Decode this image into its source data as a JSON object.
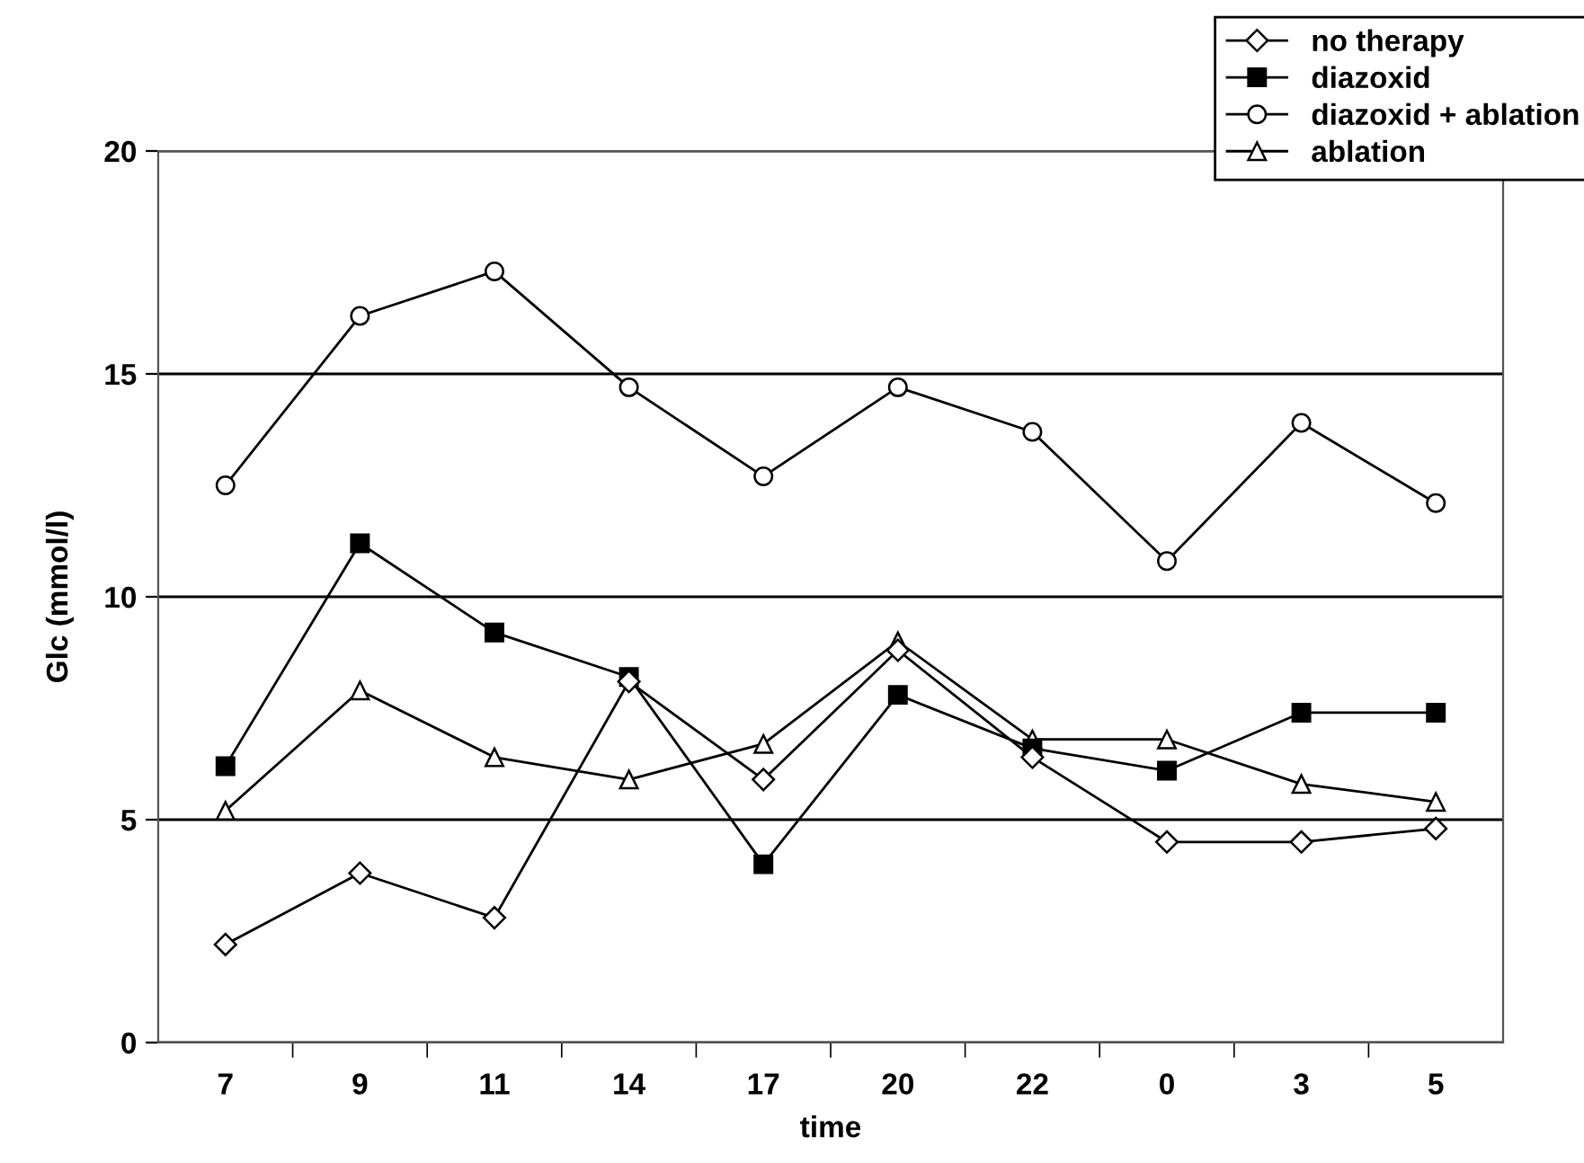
{
  "chart_data": {
    "type": "line",
    "xlabel": "time",
    "ylabel": "Glc (mmol/l)",
    "categories": [
      "7",
      "9",
      "11",
      "14",
      "17",
      "20",
      "22",
      "0",
      "3",
      "5"
    ],
    "series": [
      {
        "name": "no therapy",
        "color": "#000000",
        "marker": "diamond",
        "values": [
          2.2,
          3.8,
          2.8,
          8.1,
          5.9,
          8.8,
          6.4,
          4.5,
          4.5,
          4.8
        ]
      },
      {
        "name": "diazoxid",
        "color": "#000000",
        "marker": "square",
        "values": [
          6.2,
          11.2,
          9.2,
          8.2,
          4.0,
          7.8,
          6.6,
          6.1,
          7.4,
          7.4
        ]
      },
      {
        "name": "diazoxid + ablation",
        "color": "#000000",
        "marker": "circle",
        "values": [
          12.5,
          16.3,
          17.3,
          14.7,
          12.7,
          14.7,
          13.7,
          10.8,
          13.9,
          12.1
        ]
      },
      {
        "name": "ablation",
        "color": "#000000",
        "marker": "triangle",
        "values": [
          5.2,
          7.9,
          6.4,
          5.9,
          6.7,
          9.0,
          6.8,
          6.8,
          5.8,
          5.4
        ]
      }
    ],
    "ylim": [
      0,
      20
    ],
    "yticks": [
      0,
      5,
      10,
      15,
      20
    ],
    "grid": "y",
    "legend": "top right"
  }
}
